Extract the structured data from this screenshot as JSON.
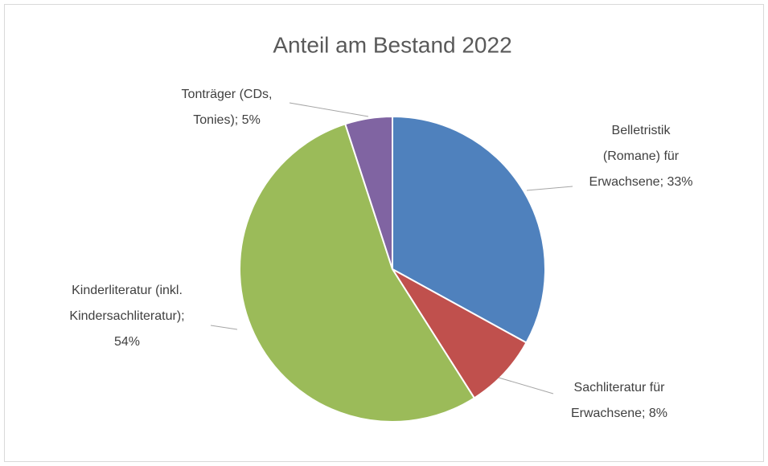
{
  "chart_data": {
    "type": "pie",
    "title": "Anteil am Bestand 2022",
    "values": [
      33,
      8,
      54,
      5
    ],
    "value_labels": [
      "Belletristik\n(Romane) für\nErwachsene; 33%",
      "Sachliteratur für\nErwachsene; 8%",
      "Kinderliteratur (inkl.\nKindersachliteratur);\n54%",
      "Tonträger (CDs,\nTonies); 5%"
    ],
    "colors": [
      "#4f81bd",
      "#c0504d",
      "#9bbb59",
      "#8064a2"
    ]
  }
}
